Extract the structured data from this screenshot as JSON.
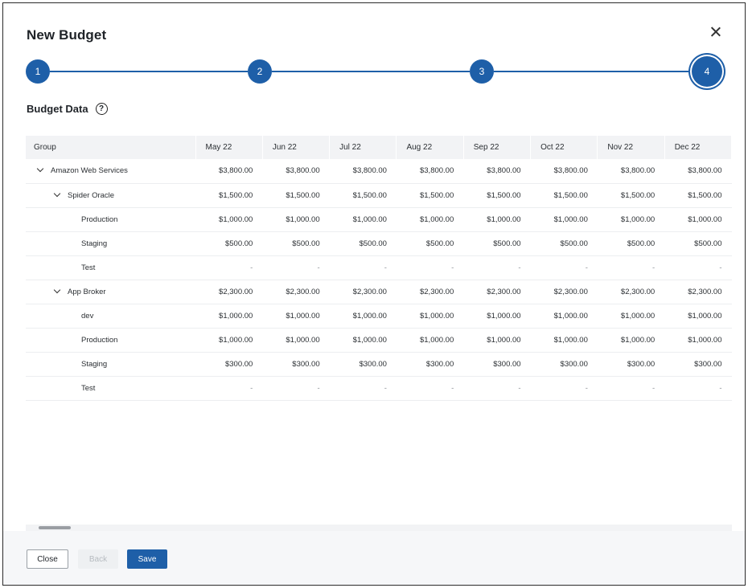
{
  "modal": {
    "title": "New Budget"
  },
  "stepper": {
    "steps": [
      "1",
      "2",
      "3",
      "4"
    ],
    "active": 4
  },
  "section": {
    "title": "Budget Data",
    "help_glyph": "?"
  },
  "table": {
    "columns": [
      "Group",
      "May 22",
      "Jun 22",
      "Jul 22",
      "Aug 22",
      "Sep 22",
      "Oct 22",
      "Nov 22",
      "Dec 22"
    ],
    "rows": [
      {
        "label": "Amazon Web Services",
        "level": 0,
        "expandable": true,
        "values": [
          "$3,800.00",
          "$3,800.00",
          "$3,800.00",
          "$3,800.00",
          "$3,800.00",
          "$3,800.00",
          "$3,800.00",
          "$3,800.00"
        ]
      },
      {
        "label": "Spider Oracle",
        "level": 1,
        "expandable": true,
        "values": [
          "$1,500.00",
          "$1,500.00",
          "$1,500.00",
          "$1,500.00",
          "$1,500.00",
          "$1,500.00",
          "$1,500.00",
          "$1,500.00"
        ]
      },
      {
        "label": "Production",
        "level": 2,
        "expandable": false,
        "values": [
          "$1,000.00",
          "$1,000.00",
          "$1,000.00",
          "$1,000.00",
          "$1,000.00",
          "$1,000.00",
          "$1,000.00",
          "$1,000.00"
        ]
      },
      {
        "label": "Staging",
        "level": 2,
        "expandable": false,
        "values": [
          "$500.00",
          "$500.00",
          "$500.00",
          "$500.00",
          "$500.00",
          "$500.00",
          "$500.00",
          "$500.00"
        ]
      },
      {
        "label": "Test",
        "level": 2,
        "expandable": false,
        "values": [
          "-",
          "-",
          "-",
          "-",
          "-",
          "-",
          "-",
          "-"
        ]
      },
      {
        "label": "App Broker",
        "level": 1,
        "expandable": true,
        "values": [
          "$2,300.00",
          "$2,300.00",
          "$2,300.00",
          "$2,300.00",
          "$2,300.00",
          "$2,300.00",
          "$2,300.00",
          "$2,300.00"
        ]
      },
      {
        "label": "dev",
        "level": 2,
        "expandable": false,
        "values": [
          "$1,000.00",
          "$1,000.00",
          "$1,000.00",
          "$1,000.00",
          "$1,000.00",
          "$1,000.00",
          "$1,000.00",
          "$1,000.00"
        ]
      },
      {
        "label": "Production",
        "level": 2,
        "expandable": false,
        "values": [
          "$1,000.00",
          "$1,000.00",
          "$1,000.00",
          "$1,000.00",
          "$1,000.00",
          "$1,000.00",
          "$1,000.00",
          "$1,000.00"
        ]
      },
      {
        "label": "Staging",
        "level": 2,
        "expandable": false,
        "values": [
          "$300.00",
          "$300.00",
          "$300.00",
          "$300.00",
          "$300.00",
          "$300.00",
          "$300.00",
          "$300.00"
        ]
      },
      {
        "label": "Test",
        "level": 2,
        "expandable": false,
        "values": [
          "-",
          "-",
          "-",
          "-",
          "-",
          "-",
          "-",
          "-"
        ]
      }
    ]
  },
  "footer": {
    "close_label": "Close",
    "back_label": "Back",
    "save_label": "Save"
  },
  "colors": {
    "primary": "#1e5fa8",
    "header_bg": "#f2f3f5",
    "footer_bg": "#f6f7f9"
  }
}
